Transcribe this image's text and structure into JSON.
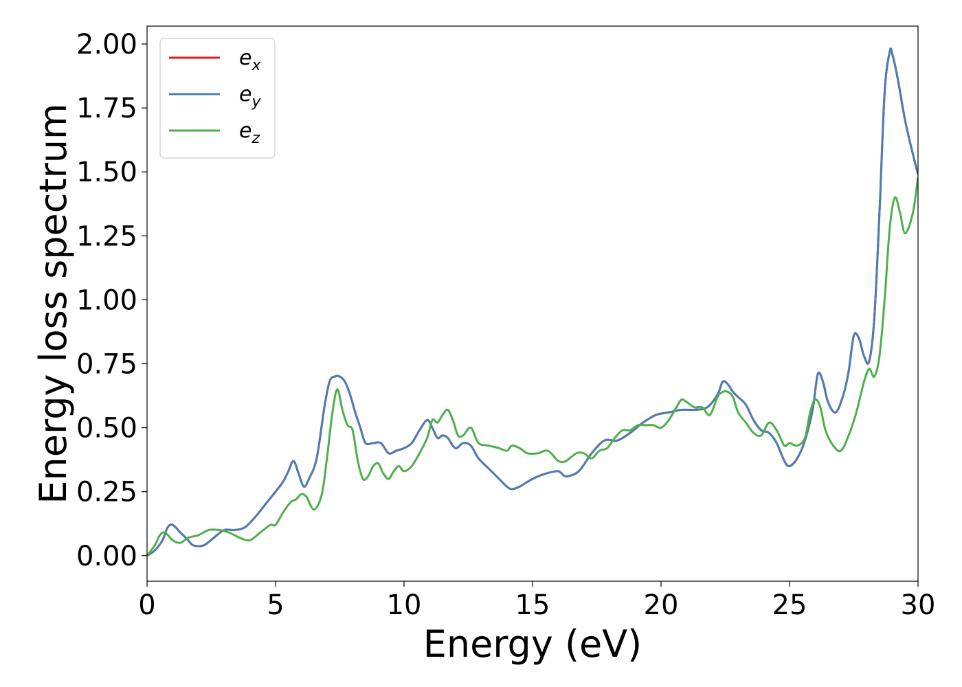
{
  "chart_data": {
    "type": "line",
    "title": "",
    "xlabel": "Energy (eV)",
    "ylabel": "Energy loss spectrum",
    "xlim": [
      0,
      30
    ],
    "ylim": [
      -0.1,
      2.07
    ],
    "xticks": [
      0,
      5,
      10,
      15,
      20,
      25,
      30
    ],
    "xtick_labels": [
      "0",
      "5",
      "10",
      "15",
      "20",
      "25",
      "30"
    ],
    "yticks": [
      0,
      0.25,
      0.5,
      0.75,
      1.0,
      1.25,
      1.5,
      1.75,
      2.0
    ],
    "ytick_labels": [
      "0.00",
      "0.25",
      "0.50",
      "0.75",
      "1.00",
      "1.25",
      "1.50",
      "1.75",
      "2.00"
    ],
    "grid": false,
    "legend_position": "top-left",
    "series": [
      {
        "name": "e_x",
        "base": "e",
        "sub": "x",
        "color": "#e41a1c",
        "x": [
          0,
          0.3,
          0.6,
          0.8,
          1.0,
          1.3,
          1.6,
          1.8,
          2.2,
          2.6,
          3.0,
          3.4,
          3.8,
          4.2,
          4.6,
          5.0,
          5.3,
          5.5,
          5.7,
          5.9,
          6.1,
          6.3,
          6.6,
          6.9,
          7.1,
          7.3,
          7.5,
          7.7,
          7.9,
          8.1,
          8.3,
          8.5,
          8.8,
          9.1,
          9.4,
          9.7,
          10.0,
          10.3,
          10.6,
          10.9,
          11.1,
          11.3,
          11.5,
          11.7,
          12.0,
          12.3,
          12.6,
          12.9,
          13.3,
          13.7,
          14.0,
          14.2,
          14.5,
          15.0,
          15.5,
          16.0,
          16.3,
          16.8,
          17.3,
          17.8,
          18.3,
          18.8,
          19.3,
          19.8,
          20.3,
          20.8,
          21.3,
          21.8,
          22.2,
          22.4,
          22.6,
          22.8,
          23.0,
          23.3,
          23.6,
          23.9,
          24.2,
          24.5,
          24.8,
          25.0,
          25.3,
          25.6,
          25.9,
          26.1,
          26.3,
          26.5,
          26.8,
          27.1,
          27.3,
          27.5,
          27.7,
          27.9,
          28.1,
          28.3,
          28.5,
          28.7,
          28.9,
          29.0,
          29.2,
          29.5,
          29.8,
          30.0
        ],
        "y": [
          0.0,
          0.02,
          0.06,
          0.11,
          0.12,
          0.09,
          0.06,
          0.04,
          0.04,
          0.07,
          0.1,
          0.1,
          0.11,
          0.15,
          0.2,
          0.25,
          0.29,
          0.33,
          0.37,
          0.32,
          0.27,
          0.3,
          0.38,
          0.58,
          0.68,
          0.7,
          0.7,
          0.68,
          0.63,
          0.56,
          0.5,
          0.44,
          0.44,
          0.44,
          0.4,
          0.41,
          0.42,
          0.44,
          0.49,
          0.53,
          0.5,
          0.46,
          0.47,
          0.46,
          0.42,
          0.44,
          0.43,
          0.38,
          0.34,
          0.3,
          0.27,
          0.26,
          0.27,
          0.3,
          0.32,
          0.33,
          0.31,
          0.33,
          0.4,
          0.45,
          0.45,
          0.48,
          0.52,
          0.55,
          0.56,
          0.57,
          0.57,
          0.58,
          0.63,
          0.68,
          0.67,
          0.64,
          0.62,
          0.59,
          0.53,
          0.49,
          0.48,
          0.44,
          0.37,
          0.35,
          0.38,
          0.45,
          0.57,
          0.71,
          0.68,
          0.6,
          0.56,
          0.63,
          0.72,
          0.86,
          0.85,
          0.78,
          0.76,
          0.93,
          1.34,
          1.81,
          1.97,
          1.96,
          1.87,
          1.7,
          1.57,
          1.49
        ]
      },
      {
        "name": "e_y",
        "base": "e",
        "sub": "y",
        "color": "#4a7db5",
        "x": [
          0,
          0.3,
          0.6,
          0.8,
          1.0,
          1.3,
          1.6,
          1.8,
          2.2,
          2.6,
          3.0,
          3.4,
          3.8,
          4.2,
          4.6,
          5.0,
          5.3,
          5.5,
          5.7,
          5.9,
          6.1,
          6.3,
          6.6,
          6.9,
          7.1,
          7.3,
          7.5,
          7.7,
          7.9,
          8.1,
          8.3,
          8.5,
          8.8,
          9.1,
          9.4,
          9.7,
          10.0,
          10.3,
          10.6,
          10.9,
          11.1,
          11.3,
          11.5,
          11.7,
          12.0,
          12.3,
          12.6,
          12.9,
          13.3,
          13.7,
          14.0,
          14.2,
          14.5,
          15.0,
          15.5,
          16.0,
          16.3,
          16.8,
          17.3,
          17.8,
          18.3,
          18.8,
          19.3,
          19.8,
          20.3,
          20.8,
          21.3,
          21.8,
          22.2,
          22.4,
          22.6,
          22.8,
          23.0,
          23.3,
          23.6,
          23.9,
          24.2,
          24.5,
          24.8,
          25.0,
          25.3,
          25.6,
          25.9,
          26.1,
          26.3,
          26.5,
          26.8,
          27.1,
          27.3,
          27.5,
          27.7,
          27.9,
          28.1,
          28.3,
          28.5,
          28.7,
          28.9,
          29.0,
          29.2,
          29.5,
          29.8,
          30.0
        ],
        "y": [
          0.0,
          0.02,
          0.06,
          0.11,
          0.12,
          0.09,
          0.06,
          0.04,
          0.04,
          0.07,
          0.1,
          0.1,
          0.11,
          0.15,
          0.2,
          0.25,
          0.29,
          0.33,
          0.37,
          0.32,
          0.27,
          0.3,
          0.38,
          0.58,
          0.68,
          0.7,
          0.7,
          0.68,
          0.63,
          0.56,
          0.5,
          0.44,
          0.44,
          0.44,
          0.4,
          0.41,
          0.42,
          0.44,
          0.49,
          0.53,
          0.5,
          0.46,
          0.47,
          0.46,
          0.42,
          0.44,
          0.43,
          0.38,
          0.34,
          0.3,
          0.27,
          0.26,
          0.27,
          0.3,
          0.32,
          0.33,
          0.31,
          0.33,
          0.4,
          0.45,
          0.45,
          0.48,
          0.52,
          0.55,
          0.56,
          0.57,
          0.57,
          0.58,
          0.63,
          0.68,
          0.67,
          0.64,
          0.62,
          0.59,
          0.53,
          0.49,
          0.48,
          0.44,
          0.37,
          0.35,
          0.38,
          0.45,
          0.57,
          0.71,
          0.68,
          0.6,
          0.56,
          0.63,
          0.72,
          0.86,
          0.85,
          0.78,
          0.76,
          0.93,
          1.34,
          1.81,
          1.97,
          1.96,
          1.87,
          1.7,
          1.57,
          1.49
        ]
      },
      {
        "name": "e_z",
        "base": "e",
        "sub": "z",
        "color": "#4daf4a",
        "x": [
          0,
          0.3,
          0.5,
          0.7,
          1.0,
          1.3,
          1.6,
          2.0,
          2.4,
          2.8,
          3.2,
          3.6,
          4.0,
          4.4,
          4.8,
          5.0,
          5.3,
          5.6,
          5.8,
          6.0,
          6.2,
          6.5,
          6.8,
          7.0,
          7.2,
          7.4,
          7.6,
          7.8,
          8.0,
          8.2,
          8.4,
          8.6,
          8.8,
          9.0,
          9.2,
          9.4,
          9.6,
          9.8,
          10.0,
          10.3,
          10.6,
          10.9,
          11.1,
          11.3,
          11.5,
          11.7,
          11.9,
          12.1,
          12.3,
          12.6,
          12.9,
          13.3,
          13.7,
          14.0,
          14.2,
          14.5,
          14.8,
          15.2,
          15.6,
          16.0,
          16.3,
          16.7,
          17.0,
          17.3,
          17.6,
          17.9,
          18.2,
          18.5,
          18.8,
          19.1,
          19.4,
          19.7,
          20.0,
          20.3,
          20.6,
          20.8,
          21.0,
          21.3,
          21.6,
          21.9,
          22.2,
          22.4,
          22.6,
          22.8,
          23.0,
          23.3,
          23.6,
          23.9,
          24.2,
          24.5,
          24.8,
          25.0,
          25.3,
          25.6,
          25.8,
          26.0,
          26.2,
          26.4,
          26.7,
          27.0,
          27.3,
          27.6,
          27.9,
          28.1,
          28.3,
          28.5,
          28.7,
          28.9,
          29.1,
          29.3,
          29.5,
          29.8,
          30.0
        ],
        "y": [
          0.0,
          0.04,
          0.08,
          0.09,
          0.06,
          0.05,
          0.07,
          0.08,
          0.1,
          0.1,
          0.09,
          0.07,
          0.06,
          0.09,
          0.12,
          0.12,
          0.17,
          0.21,
          0.22,
          0.24,
          0.23,
          0.18,
          0.24,
          0.38,
          0.55,
          0.65,
          0.57,
          0.51,
          0.49,
          0.37,
          0.3,
          0.31,
          0.35,
          0.36,
          0.32,
          0.3,
          0.33,
          0.35,
          0.33,
          0.35,
          0.4,
          0.46,
          0.53,
          0.52,
          0.55,
          0.57,
          0.53,
          0.47,
          0.47,
          0.5,
          0.44,
          0.43,
          0.42,
          0.41,
          0.43,
          0.42,
          0.4,
          0.4,
          0.41,
          0.37,
          0.37,
          0.4,
          0.4,
          0.38,
          0.41,
          0.42,
          0.46,
          0.49,
          0.49,
          0.51,
          0.51,
          0.51,
          0.5,
          0.53,
          0.58,
          0.61,
          0.6,
          0.58,
          0.58,
          0.55,
          0.62,
          0.64,
          0.64,
          0.62,
          0.56,
          0.52,
          0.48,
          0.47,
          0.52,
          0.49,
          0.43,
          0.44,
          0.43,
          0.46,
          0.56,
          0.61,
          0.58,
          0.49,
          0.43,
          0.41,
          0.47,
          0.56,
          0.68,
          0.73,
          0.7,
          0.78,
          1.0,
          1.28,
          1.4,
          1.34,
          1.26,
          1.34,
          1.48
        ]
      }
    ]
  }
}
